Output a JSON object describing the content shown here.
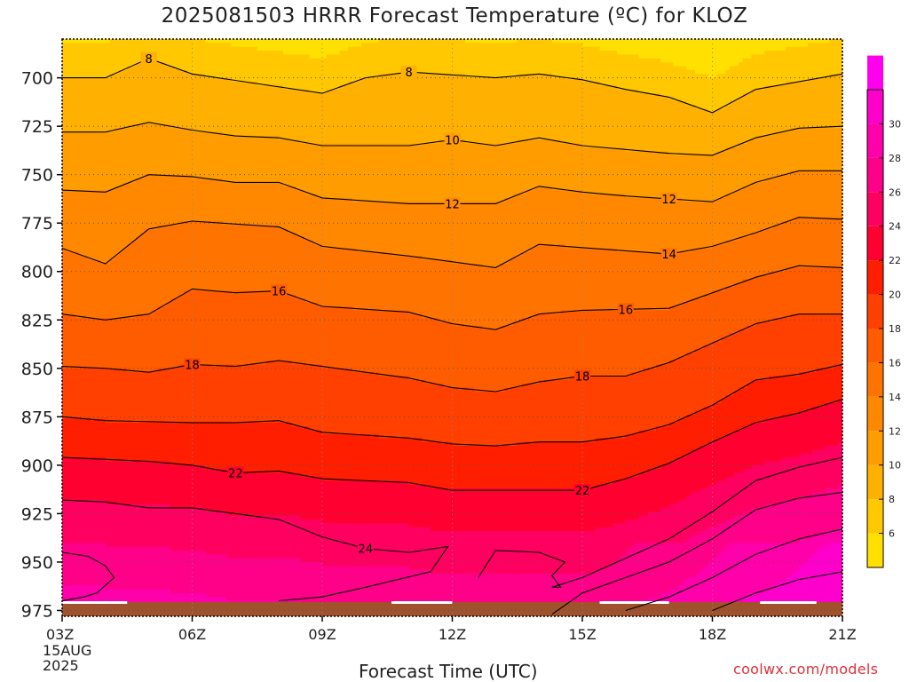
{
  "chart_data": {
    "type": "contour",
    "title": "2025081503 HRRR Forecast Temperature (ºC) for KLOZ",
    "xlabel": "Forecast Time (UTC)",
    "ylabel": "",
    "x_ticks": [
      "03Z",
      "06Z",
      "09Z",
      "12Z",
      "15Z",
      "18Z",
      "21Z"
    ],
    "x_first_date": [
      "15AUG",
      "2025"
    ],
    "x_hours_range": [
      3,
      21
    ],
    "y_ticks": [
      700,
      725,
      750,
      775,
      800,
      825,
      850,
      875,
      900,
      925,
      950,
      975
    ],
    "y_axis": "pressure (hPa), inverted",
    "ylim": [
      680,
      978
    ],
    "grid": true,
    "colorbar": {
      "ticks": [
        6,
        8,
        10,
        12,
        14,
        16,
        18,
        20,
        22,
        24,
        26,
        28,
        30
      ],
      "colors": [
        "#FFE000",
        "#FFC800",
        "#FFB000",
        "#FF9C00",
        "#FF8800",
        "#FF7400",
        "#FF5C00",
        "#FF4000",
        "#FF1E00",
        "#FF0030",
        "#FF0060",
        "#FF0088",
        "#FF00AA",
        "#FF00CC",
        "#FF00EE"
      ],
      "range": [
        4,
        32
      ]
    },
    "series": [
      {
        "level": 8,
        "x": [
          3,
          4,
          5,
          6,
          9,
          10,
          11,
          13,
          14,
          15,
          16,
          17,
          18,
          19,
          21
        ],
        "y": [
          700,
          700,
          690,
          698,
          708,
          700,
          697,
          700,
          698,
          701,
          706,
          710,
          718,
          706,
          698
        ],
        "labels": [
          [
            5,
            "8"
          ],
          [
            11,
            "8"
          ]
        ]
      },
      {
        "level": 10,
        "x": [
          3,
          4,
          5,
          6,
          7,
          8,
          9,
          11,
          12,
          13,
          14,
          15,
          17,
          18,
          19,
          20,
          21
        ],
        "y": [
          728,
          728,
          723,
          727,
          730,
          731,
          735,
          735,
          732,
          735,
          731,
          735,
          739,
          740,
          731,
          726,
          725
        ],
        "labels": [
          [
            12,
            "10"
          ]
        ]
      },
      {
        "level": 12,
        "x": [
          3,
          4,
          5,
          6,
          7,
          8,
          9,
          11,
          12,
          13,
          14,
          15,
          16,
          18,
          19,
          20,
          21
        ],
        "y": [
          758,
          759,
          750,
          751,
          754,
          754,
          762,
          765,
          765,
          765,
          756,
          759,
          761,
          764,
          754,
          748,
          748
        ],
        "labels": [
          [
            12,
            "12"
          ],
          [
            17,
            "12"
          ]
        ]
      },
      {
        "level": 14,
        "x": [
          3,
          4,
          5,
          6,
          8,
          9,
          11,
          12,
          13,
          14,
          17,
          18,
          19,
          20,
          21
        ],
        "y": [
          788,
          796,
          778,
          774,
          777,
          787,
          792,
          795,
          798,
          786,
          791,
          787,
          780,
          772,
          773
        ],
        "labels": [
          [
            17,
            "14"
          ]
        ]
      },
      {
        "level": 16,
        "x": [
          3,
          4,
          5,
          6,
          7,
          8,
          9,
          11,
          12,
          13,
          14,
          15,
          17,
          19,
          20,
          21
        ],
        "y": [
          822,
          825,
          822,
          809,
          811,
          810,
          818,
          821,
          827,
          830,
          822,
          820,
          819,
          803,
          797,
          798
        ],
        "labels": [
          [
            8,
            "16"
          ],
          [
            16,
            "16"
          ]
        ]
      },
      {
        "level": 18,
        "x": [
          3,
          4,
          5,
          6,
          7,
          8,
          9,
          11,
          12,
          13,
          14,
          15,
          16,
          17,
          18,
          19,
          20,
          21
        ],
        "y": [
          849,
          850,
          852,
          848,
          849,
          846,
          849,
          855,
          860,
          862,
          857,
          854,
          854,
          847,
          837,
          827,
          822,
          822
        ],
        "labels": [
          [
            6,
            "18"
          ],
          [
            15,
            "18"
          ]
        ]
      },
      {
        "level": 20,
        "x": [
          3,
          4,
          6,
          7,
          8,
          9,
          11,
          12,
          13,
          14,
          15,
          16,
          17,
          18,
          19,
          20,
          21
        ],
        "y": [
          875,
          877,
          878,
          878,
          877,
          883,
          886,
          889,
          890,
          888,
          888,
          885,
          879,
          869,
          856,
          853,
          848
        ],
        "labels": []
      },
      {
        "level": 22,
        "x": [
          3,
          4,
          5,
          6,
          7,
          8,
          9,
          11,
          12,
          13,
          14,
          15,
          16,
          17,
          18,
          19,
          20,
          21
        ],
        "y": [
          896,
          897,
          898,
          900,
          904,
          903,
          907,
          909,
          913,
          913,
          913,
          913,
          907,
          899,
          888,
          878,
          873,
          866
        ],
        "labels": [
          [
            7,
            "22"
          ],
          [
            15,
            "22"
          ]
        ]
      },
      {
        "level": 24,
        "x": [
          3,
          4,
          5,
          6,
          8,
          9,
          10,
          11,
          11.9,
          11.5,
          10,
          9,
          8
        ],
        "y": [
          918,
          919,
          922,
          922,
          928,
          937,
          943,
          945,
          942,
          955,
          963,
          968,
          970
        ],
        "labels": [
          [
            10,
            "24"
          ]
        ]
      },
      {
        "level": 24,
        "x": [
          12.6,
          13,
          14,
          14.6,
          14.3,
          14.5,
          14.3,
          15,
          16,
          17,
          18,
          19,
          20,
          21
        ],
        "y": [
          958,
          944,
          945,
          950,
          957,
          963,
          963,
          958,
          948,
          938,
          924,
          908,
          901,
          896
        ],
        "labels": []
      },
      {
        "level": 24,
        "x": [
          3,
          3.6,
          4,
          4.2,
          3.8,
          3.5,
          3
        ],
        "y": [
          945,
          947,
          952,
          958,
          966,
          968,
          970
        ],
        "labels": []
      },
      {
        "level": 26,
        "x": [
          14.3,
          15,
          16,
          17,
          18,
          19,
          20,
          21
        ],
        "y": [
          977,
          966,
          958,
          950,
          938,
          923,
          917,
          914
        ],
        "labels": []
      },
      {
        "level": 28,
        "x": [
          16,
          17,
          18,
          19,
          20,
          21
        ],
        "y": [
          975,
          968,
          958,
          946,
          938,
          933
        ],
        "labels": []
      },
      {
        "level": 30,
        "x": [
          18,
          19,
          20,
          21
        ],
        "y": [
          975,
          966,
          959,
          955
        ],
        "labels": []
      }
    ],
    "credit": "coolwx.com/models"
  }
}
